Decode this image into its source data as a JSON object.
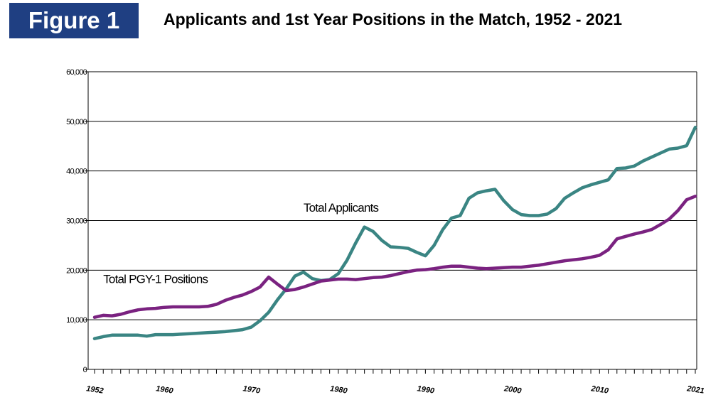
{
  "header": {
    "badge": "Figure 1",
    "title": "Applicants and 1st Year Positions in the Match, 1952 - 2021"
  },
  "chart_data": {
    "type": "line",
    "xlim": [
      1952,
      2021
    ],
    "ylim": [
      0,
      60000
    ],
    "yticks": [
      0,
      10000,
      20000,
      30000,
      40000,
      50000,
      60000
    ],
    "ytick_labels": [
      "0",
      "10,000",
      "20,000",
      "30,000",
      "40,000",
      "50,000",
      "60,000"
    ],
    "xtick_labels": [
      {
        "x": 1952,
        "label": "1952"
      },
      {
        "x": 1960,
        "label": "1960"
      },
      {
        "x": 1970,
        "label": "1970"
      },
      {
        "x": 1980,
        "label": "1980"
      },
      {
        "x": 1990,
        "label": "1990"
      },
      {
        "x": 2000,
        "label": "2000"
      },
      {
        "x": 2010,
        "label": "2010"
      },
      {
        "x": 2021,
        "label": "2021"
      }
    ],
    "grid": true,
    "colors": {
      "applicants": "#3a8583",
      "positions": "#7a2280"
    },
    "annotations": [
      {
        "text": "Total Applicants",
        "x": 1976,
        "y": 31800
      },
      {
        "text": "Total PGY-1 Positions",
        "x": 1953,
        "y": 17400
      }
    ],
    "series": [
      {
        "name": "Total Applicants",
        "color": "#3a8583",
        "x": [
          1952,
          1953,
          1954,
          1955,
          1956,
          1957,
          1958,
          1959,
          1960,
          1961,
          1962,
          1963,
          1964,
          1965,
          1966,
          1967,
          1968,
          1969,
          1970,
          1971,
          1972,
          1973,
          1974,
          1975,
          1976,
          1977,
          1978,
          1979,
          1980,
          1981,
          1982,
          1983,
          1984,
          1985,
          1986,
          1987,
          1988,
          1989,
          1990,
          1991,
          1992,
          1993,
          1994,
          1995,
          1996,
          1997,
          1998,
          1999,
          2000,
          2001,
          2002,
          2003,
          2004,
          2005,
          2006,
          2007,
          2008,
          2009,
          2010,
          2011,
          2012,
          2013,
          2014,
          2015,
          2016,
          2017,
          2018,
          2019,
          2020,
          2021
        ],
        "values": [
          6200,
          6600,
          6900,
          6900,
          6900,
          6900,
          6700,
          7000,
          7000,
          7000,
          7100,
          7200,
          7300,
          7400,
          7500,
          7600,
          7800,
          8000,
          8500,
          9800,
          11500,
          14000,
          16200,
          18800,
          19600,
          18300,
          17900,
          18100,
          19300,
          22000,
          25500,
          28700,
          27800,
          26000,
          24700,
          24600,
          24400,
          23600,
          22900,
          25000,
          28200,
          30500,
          31000,
          34500,
          35600,
          36000,
          36300,
          34000,
          32200,
          31200,
          31000,
          31000,
          31300,
          32400,
          34500,
          35600,
          36600,
          37200,
          37700,
          38200,
          40500,
          40600,
          41000,
          42000,
          42800,
          43600,
          44400,
          44600,
          45100,
          48800
        ]
      },
      {
        "name": "Total PGY-1 Positions",
        "color": "#7a2280",
        "x": [
          1952,
          1953,
          1954,
          1955,
          1956,
          1957,
          1958,
          1959,
          1960,
          1961,
          1962,
          1963,
          1964,
          1965,
          1966,
          1967,
          1968,
          1969,
          1970,
          1971,
          1972,
          1973,
          1974,
          1975,
          1976,
          1977,
          1978,
          1979,
          1980,
          1981,
          1982,
          1983,
          1984,
          1985,
          1986,
          1987,
          1988,
          1989,
          1990,
          1991,
          1992,
          1993,
          1994,
          1995,
          1996,
          1997,
          1998,
          1999,
          2000,
          2001,
          2002,
          2003,
          2004,
          2005,
          2006,
          2007,
          2008,
          2009,
          2010,
          2011,
          2012,
          2013,
          2014,
          2015,
          2016,
          2017,
          2018,
          2019,
          2020,
          2021
        ],
        "values": [
          10500,
          10900,
          10800,
          11100,
          11600,
          12000,
          12200,
          12300,
          12500,
          12600,
          12600,
          12600,
          12600,
          12700,
          13100,
          13900,
          14500,
          15000,
          15700,
          16600,
          18600,
          17200,
          15900,
          16100,
          16600,
          17200,
          17800,
          18000,
          18200,
          18200,
          18100,
          18300,
          18500,
          18600,
          18900,
          19300,
          19700,
          20000,
          20100,
          20300,
          20600,
          20800,
          20800,
          20600,
          20400,
          20300,
          20400,
          20500,
          20600,
          20600,
          20800,
          21000,
          21300,
          21600,
          21900,
          22100,
          22300,
          22600,
          23000,
          24100,
          26300,
          26800,
          27300,
          27700,
          28200,
          29200,
          30300,
          32000,
          34200,
          34900
        ]
      }
    ]
  }
}
